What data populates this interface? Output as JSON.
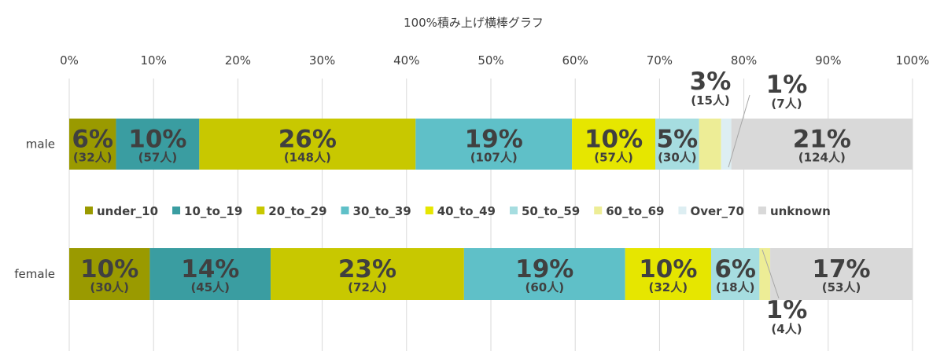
{
  "chart_data": {
    "type": "bar",
    "orientation": "horizontal",
    "stacked": "percent",
    "title": "100%積み上げ横棒グラフ",
    "x_ticks": [
      "0%",
      "10%",
      "20%",
      "30%",
      "40%",
      "50%",
      "60%",
      "70%",
      "80%",
      "90%",
      "100%"
    ],
    "xlim": [
      0,
      100
    ],
    "grid": true,
    "legend_position": "middle",
    "categories": [
      "male",
      "female"
    ],
    "series": [
      {
        "name": "under_10",
        "color": "#9a9a00",
        "values": [
          32,
          30
        ],
        "pct_labels": [
          "6%",
          "10%"
        ],
        "count_labels": [
          "(32人)",
          "(30人)"
        ]
      },
      {
        "name": "10_to_19",
        "color": "#3a9da1",
        "values": [
          57,
          45
        ],
        "pct_labels": [
          "10%",
          "14%"
        ],
        "count_labels": [
          "(57人)",
          "(45人)"
        ]
      },
      {
        "name": "20_to_29",
        "color": "#c8c800",
        "values": [
          148,
          72
        ],
        "pct_labels": [
          "26%",
          "23%"
        ],
        "count_labels": [
          "(148人)",
          "(72人)"
        ]
      },
      {
        "name": "30_to_39",
        "color": "#5fc0c8",
        "values": [
          107,
          60
        ],
        "pct_labels": [
          "19%",
          "19%"
        ],
        "count_labels": [
          "(107人)",
          "(60人)"
        ]
      },
      {
        "name": "40_to_49",
        "color": "#e6e600",
        "values": [
          57,
          32
        ],
        "pct_labels": [
          "10%",
          "10%"
        ],
        "count_labels": [
          "(57人)",
          "(32人)"
        ]
      },
      {
        "name": "50_to_59",
        "color": "#a6dde0",
        "values": [
          30,
          18
        ],
        "pct_labels": [
          "5%",
          "6%"
        ],
        "count_labels": [
          "(30人)",
          "(18人)"
        ]
      },
      {
        "name": "60_to_69",
        "color": "#eded96",
        "values": [
          15,
          4
        ],
        "pct_labels": [
          "3%",
          "1%"
        ],
        "count_labels": [
          "(15人)",
          "(4人)"
        ]
      },
      {
        "name": "Over_70",
        "color": "#ddeef2",
        "values": [
          7,
          0
        ],
        "pct_labels": [
          "1%",
          ""
        ],
        "count_labels": [
          "(7人)",
          ""
        ]
      },
      {
        "name": "unknown",
        "color": "#d9d9d9",
        "values": [
          124,
          53
        ],
        "pct_labels": [
          "21%",
          "17%"
        ],
        "count_labels": [
          "(124人)",
          "(53人)"
        ]
      }
    ]
  }
}
